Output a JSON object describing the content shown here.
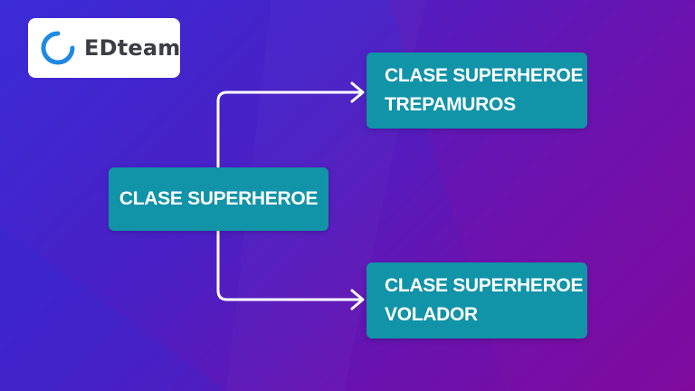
{
  "brand": {
    "name": "EDteam",
    "ring_color": "#1e88e5"
  },
  "diagram": {
    "base": {
      "label": "CLASE SUPERHEROE"
    },
    "children": [
      {
        "line1": "CLASE SUPERHEROE",
        "line2": "TREPAMUROS"
      },
      {
        "line1": "CLASE SUPERHEROE",
        "line2": "VOLADOR"
      }
    ]
  },
  "colors": {
    "node_fill": "#1193a8",
    "node_text": "#ffffff",
    "connector": "#ffffff",
    "background_start": "#3a2bd6",
    "background_end": "#7d0a9c"
  }
}
